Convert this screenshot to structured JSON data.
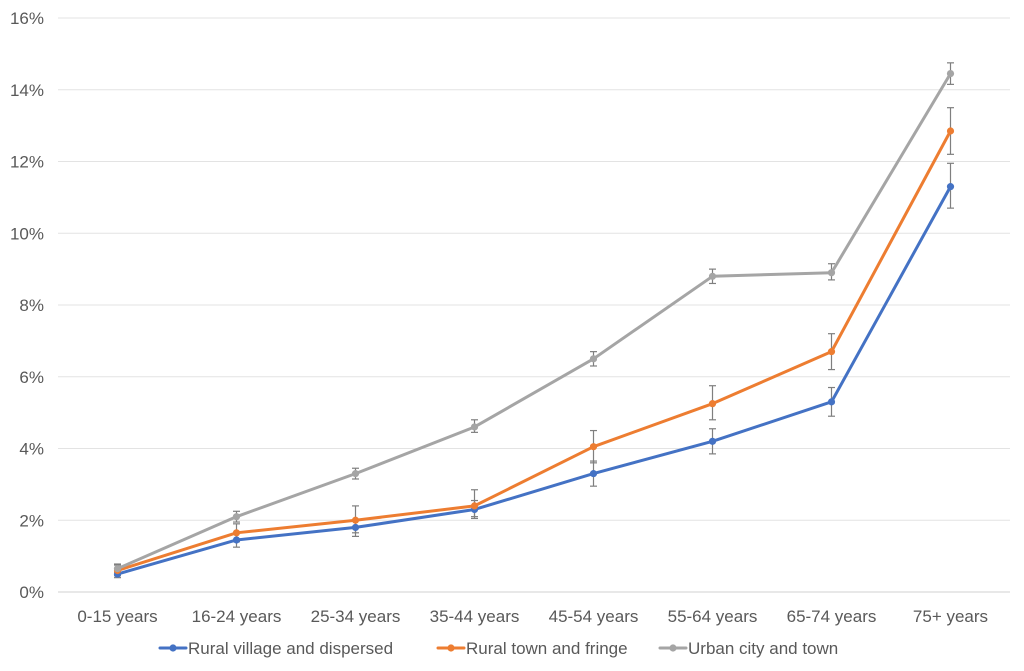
{
  "chart_data": {
    "type": "line",
    "title": "",
    "xlabel": "",
    "ylabel": "",
    "categories": [
      "0-15 years",
      "16-24 years",
      "25-34 years",
      "35-44 years",
      "45-54 years",
      "55-64 years",
      "65-74 years",
      "75+ years"
    ],
    "ylim": [
      0,
      16
    ],
    "yticks": [
      {
        "value": 0,
        "label": "0%"
      },
      {
        "value": 2,
        "label": "2%"
      },
      {
        "value": 4,
        "label": "4%"
      },
      {
        "value": 6,
        "label": "6%"
      },
      {
        "value": 8,
        "label": "8%"
      },
      {
        "value": 10,
        "label": "10%"
      },
      {
        "value": 12,
        "label": "12%"
      },
      {
        "value": 14,
        "label": "14%"
      },
      {
        "value": 16,
        "label": "16%"
      }
    ],
    "grid": true,
    "legend_position": "bottom",
    "series": [
      {
        "name": "Rural village and dispersed",
        "color": "#4472c4",
        "values": [
          0.5,
          1.45,
          1.8,
          2.3,
          3.3,
          4.2,
          5.3,
          11.3
        ],
        "error_low": [
          0.4,
          1.25,
          1.55,
          2.05,
          2.95,
          3.85,
          4.9,
          10.7
        ],
        "error_high": [
          0.62,
          1.65,
          2.0,
          2.55,
          3.65,
          4.55,
          5.7,
          11.95
        ]
      },
      {
        "name": "Rural town and fringe",
        "color": "#ed7d31",
        "values": [
          0.6,
          1.65,
          2.0,
          2.4,
          4.05,
          5.25,
          6.7,
          12.85
        ],
        "error_low": [
          0.45,
          1.4,
          1.65,
          2.1,
          3.6,
          4.8,
          6.2,
          12.2
        ],
        "error_high": [
          0.75,
          1.9,
          2.4,
          2.85,
          4.5,
          5.75,
          7.2,
          13.5
        ]
      },
      {
        "name": "Urban city and town",
        "color": "#a5a5a5",
        "values": [
          0.65,
          2.1,
          3.3,
          4.6,
          6.5,
          8.8,
          8.9,
          14.45
        ],
        "error_low": [
          0.55,
          1.95,
          3.15,
          4.45,
          6.3,
          8.6,
          8.7,
          14.15
        ],
        "error_high": [
          0.78,
          2.25,
          3.45,
          4.8,
          6.7,
          9.0,
          9.15,
          14.75
        ]
      }
    ]
  }
}
